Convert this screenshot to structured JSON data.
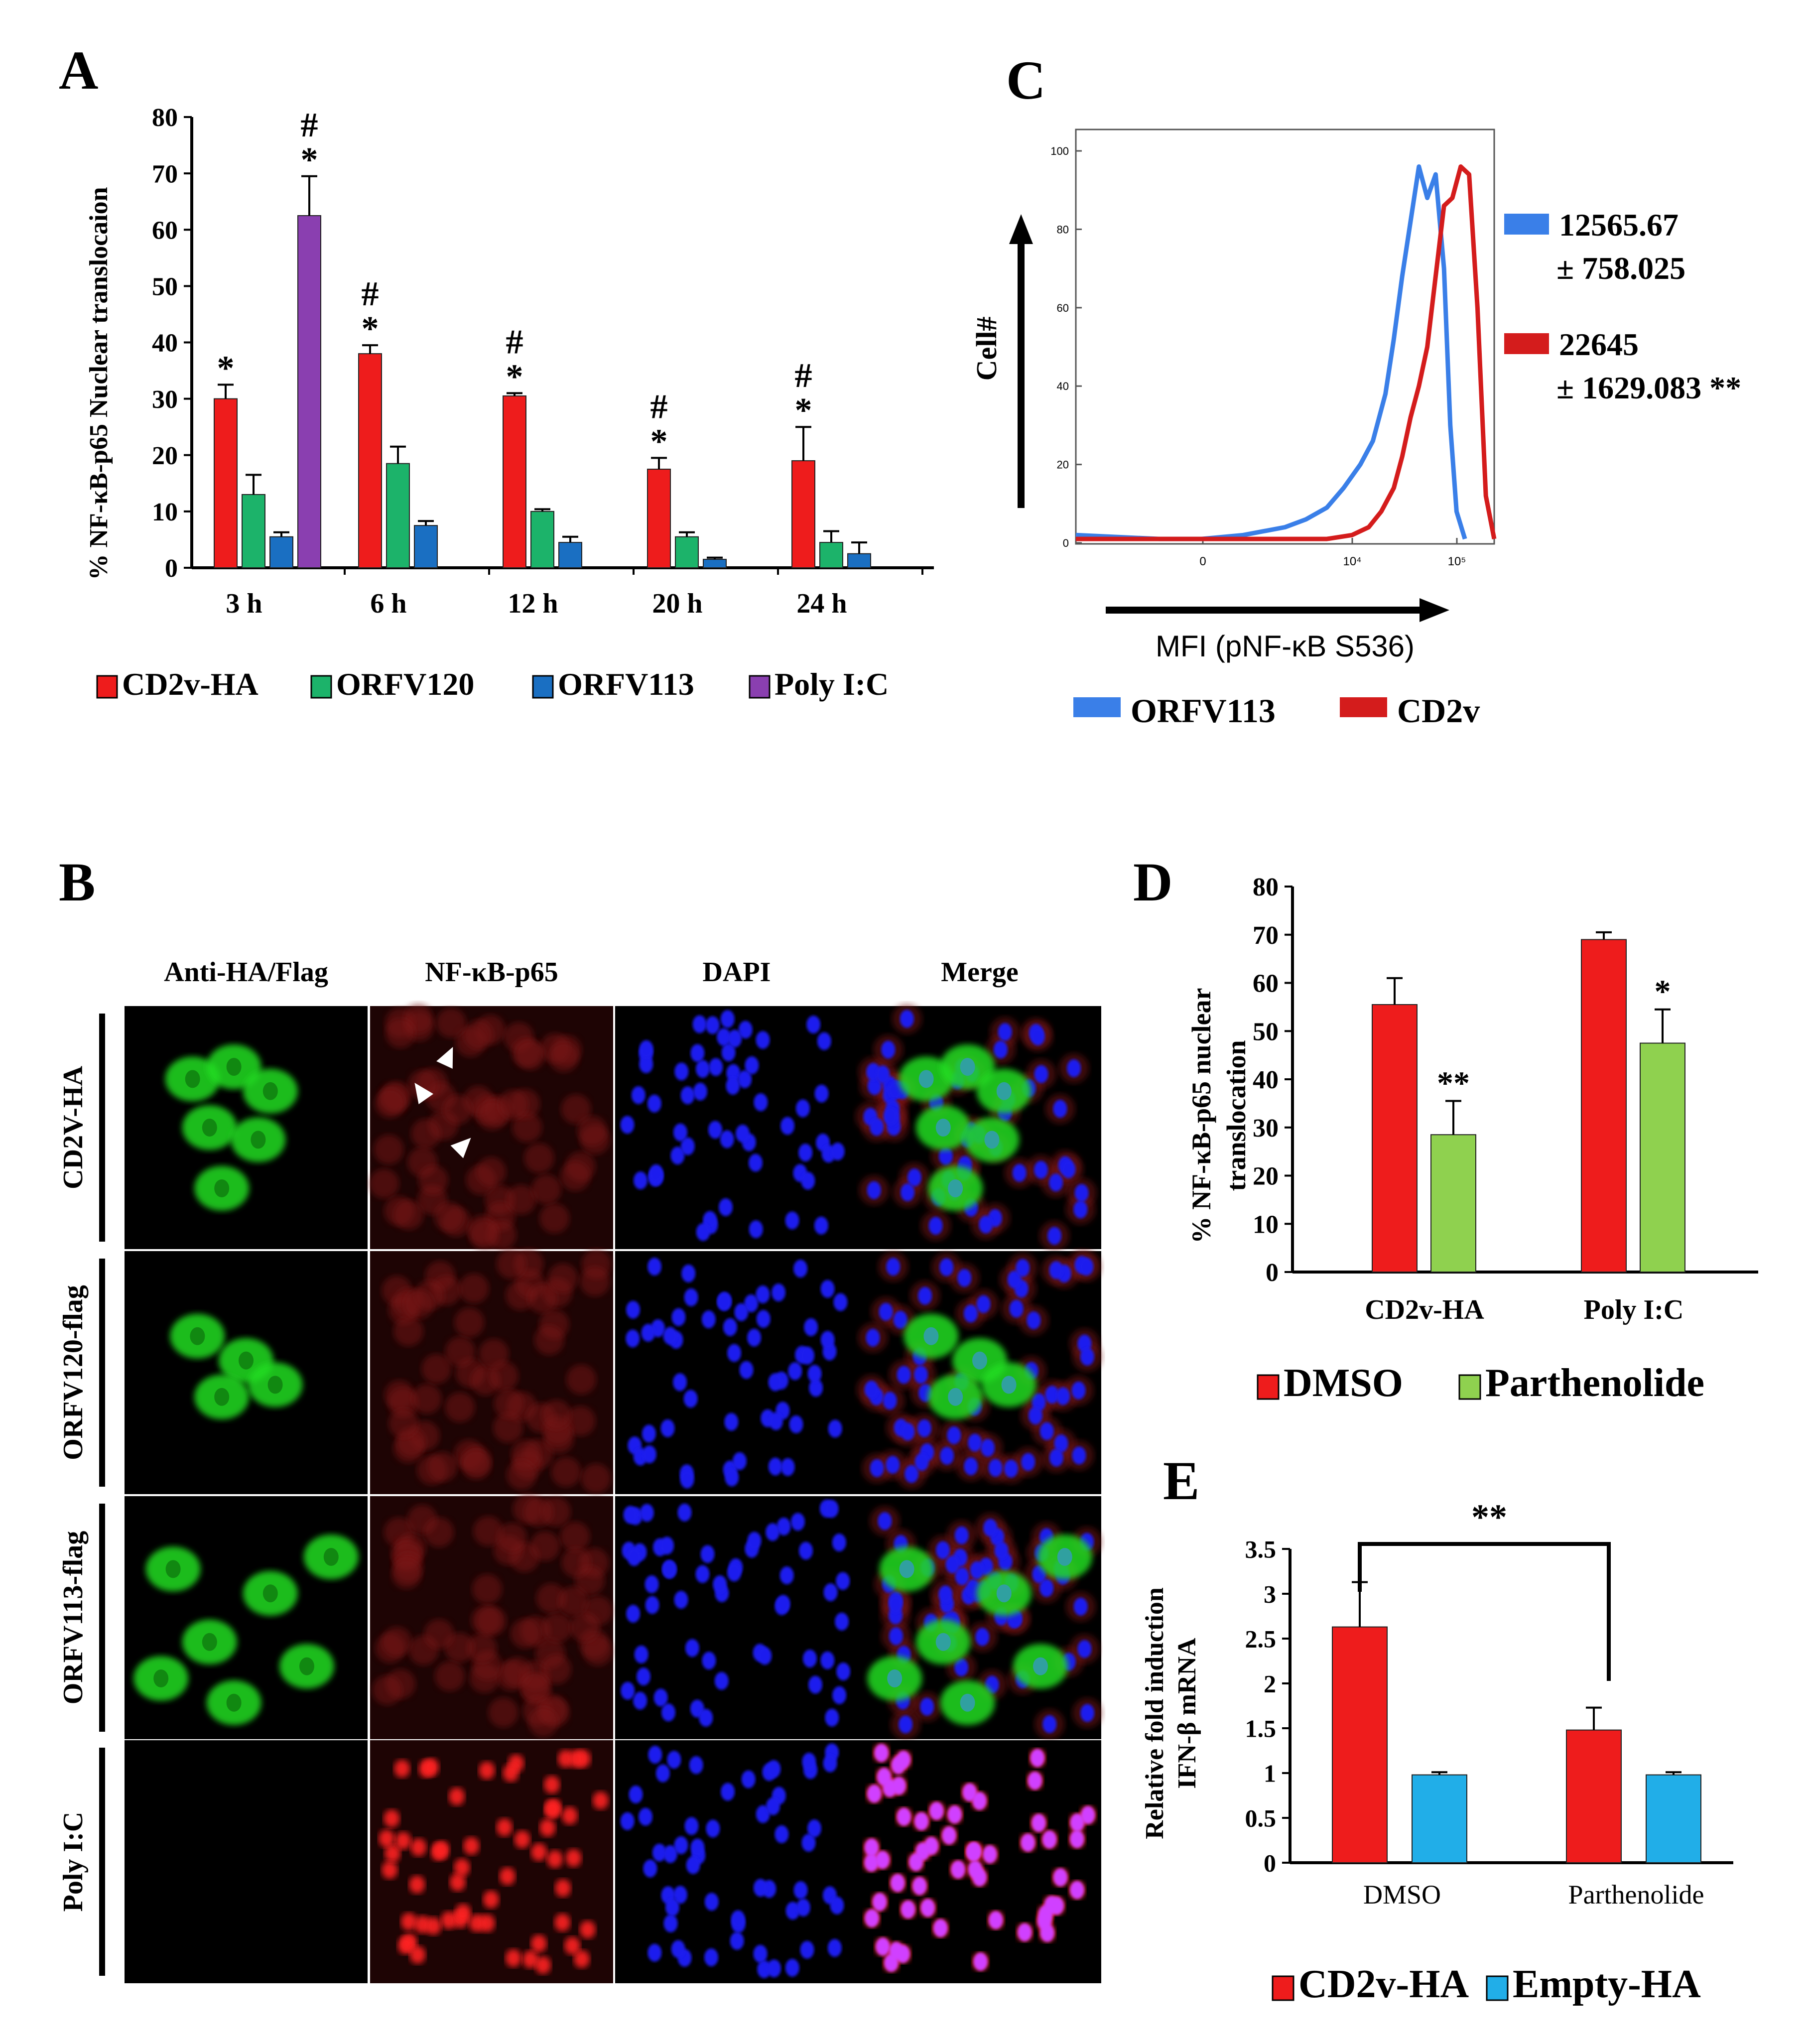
{
  "colors": {
    "red": "#ee1c1c",
    "green": "#1cb36a",
    "blue_dark": "#1a6fc2",
    "purple": "#8a3fb0",
    "green_light": "#8fd14f",
    "cyan": "#21aee8",
    "hist_blue": "#3a7fe8",
    "hist_red": "#d41c1c",
    "micro_green": "#22dd22",
    "micro_red": "#cc1a1a",
    "micro_blue": "#1a1aee"
  },
  "chart_data": [
    {
      "panel": "A",
      "type": "bar",
      "ylabel": "% NF-κB-p65 Nuclear translocaion",
      "ylim": [
        0,
        80
      ],
      "yticks": [
        "0",
        "10",
        "20",
        "30",
        "40",
        "50",
        "60",
        "70",
        "80"
      ],
      "categories": [
        "3 h",
        "6 h",
        "12 h",
        "20 h",
        "24 h"
      ],
      "series": [
        {
          "name": "CD2v-HA",
          "color": "red",
          "values": [
            30,
            38,
            30.5,
            17.5,
            19
          ],
          "errors": [
            2.5,
            1.5,
            0.5,
            2,
            6
          ]
        },
        {
          "name": "ORFV120",
          "color": "green",
          "values": [
            13,
            18.5,
            10,
            5.5,
            4.5
          ],
          "errors": [
            3.5,
            3,
            0.4,
            0.8,
            2
          ]
        },
        {
          "name": "ORFV113",
          "color": "blue_dark",
          "values": [
            5.5,
            7.5,
            4.5,
            1.5,
            2.5
          ],
          "errors": [
            0.8,
            0.8,
            1,
            0.3,
            2
          ]
        },
        {
          "name": "Poly I:C",
          "color": "purple",
          "values": [
            62.5,
            null,
            null,
            null,
            null
          ],
          "errors": [
            7,
            null,
            null,
            null,
            null
          ]
        }
      ],
      "annotations": [
        "*",
        "#"
      ]
    },
    {
      "panel": "C",
      "type": "line",
      "title": "",
      "xlabel": "MFI (pNF-κB S536)",
      "ylabel": "Cell#",
      "yticks": [
        "0",
        "20",
        "40",
        "60",
        "80",
        "100"
      ],
      "xticks": [
        "0",
        "10⁴",
        "10⁵"
      ],
      "legend": [
        "ORFV113",
        "CD2v"
      ],
      "stats": [
        {
          "color": "hist_blue",
          "line1": "12565.67",
          "line2": "± 758.025"
        },
        {
          "color": "hist_red",
          "line1": "22645",
          "line2": "± 1629.083 **"
        }
      ],
      "series": [
        {
          "name": "ORFV113",
          "color": "hist_blue",
          "x": [
            0,
            0.2,
            0.3,
            0.4,
            0.5,
            0.55,
            0.6,
            0.64,
            0.68,
            0.71,
            0.74,
            0.76,
            0.78,
            0.8,
            0.82,
            0.84,
            0.86,
            0.88,
            0.895,
            0.91,
            0.93
          ],
          "y": [
            2,
            1,
            1,
            2,
            4,
            6,
            9,
            14,
            20,
            26,
            38,
            52,
            68,
            82,
            96,
            88,
            94,
            70,
            30,
            8,
            1
          ]
        },
        {
          "name": "CD2v",
          "color": "hist_red",
          "x": [
            0,
            0.3,
            0.5,
            0.6,
            0.66,
            0.7,
            0.73,
            0.76,
            0.78,
            0.8,
            0.82,
            0.84,
            0.86,
            0.88,
            0.9,
            0.92,
            0.94,
            0.96,
            0.98,
            1.0
          ],
          "y": [
            1,
            1,
            1,
            1,
            2,
            4,
            8,
            14,
            22,
            32,
            40,
            50,
            68,
            86,
            88,
            96,
            94,
            60,
            12,
            1
          ]
        }
      ]
    },
    {
      "panel": "D",
      "type": "bar",
      "ylabel": "% NF-κB-p65  nuclear translocation",
      "ylim": [
        0,
        80
      ],
      "yticks": [
        "0",
        "10",
        "20",
        "30",
        "40",
        "50",
        "60",
        "70",
        "80"
      ],
      "categories": [
        "CD2v-HA",
        "Poly I:C"
      ],
      "series": [
        {
          "name": "DMSO",
          "color": "red",
          "values": [
            55.5,
            69
          ],
          "errors": [
            5.5,
            1.5
          ]
        },
        {
          "name": "Parthenolide",
          "color": "green_light",
          "values": [
            28.5,
            47.5
          ],
          "errors": [
            7,
            7
          ]
        }
      ],
      "annotations": [
        "**",
        "*"
      ]
    },
    {
      "panel": "E",
      "type": "bar",
      "ylabel": "Relative fold induction IFN-β mRNA",
      "ylim": [
        0,
        3.5
      ],
      "yticks": [
        "0",
        "0.5",
        "1",
        "1.5",
        "2",
        "2.5",
        "3",
        "3.5"
      ],
      "categories": [
        "DMSO",
        "Parthenolide"
      ],
      "series": [
        {
          "name": "CD2v-HA",
          "color": "red",
          "values": [
            2.63,
            1.48
          ],
          "errors": [
            0.5,
            0.25
          ]
        },
        {
          "name": "Empty-HA",
          "color": "cyan",
          "values": [
            0.98,
            0.98
          ],
          "errors": [
            0.03,
            0.03
          ]
        }
      ],
      "annotations": [
        "**"
      ]
    }
  ],
  "panels": {
    "A": {
      "label": "A",
      "line1": "% NF-κB-p65 Nuclear translocaion"
    },
    "B": {
      "label": "B",
      "columns": [
        "Anti-HA/Flag",
        "NF-κB-p65",
        "DAPI",
        "Merge"
      ],
      "rows": [
        "CD2V-HA",
        "ORFV120-flag",
        "ORFV113-flag",
        "Poly I:C"
      ]
    },
    "C": {
      "label": "C"
    },
    "D": {
      "label": "D",
      "line1": "% NF-κB-p65  nuclear",
      "line2": "translocation"
    },
    "E": {
      "label": "E",
      "line1": "Relative fold induction",
      "line2": "IFN-β mRNA"
    }
  }
}
